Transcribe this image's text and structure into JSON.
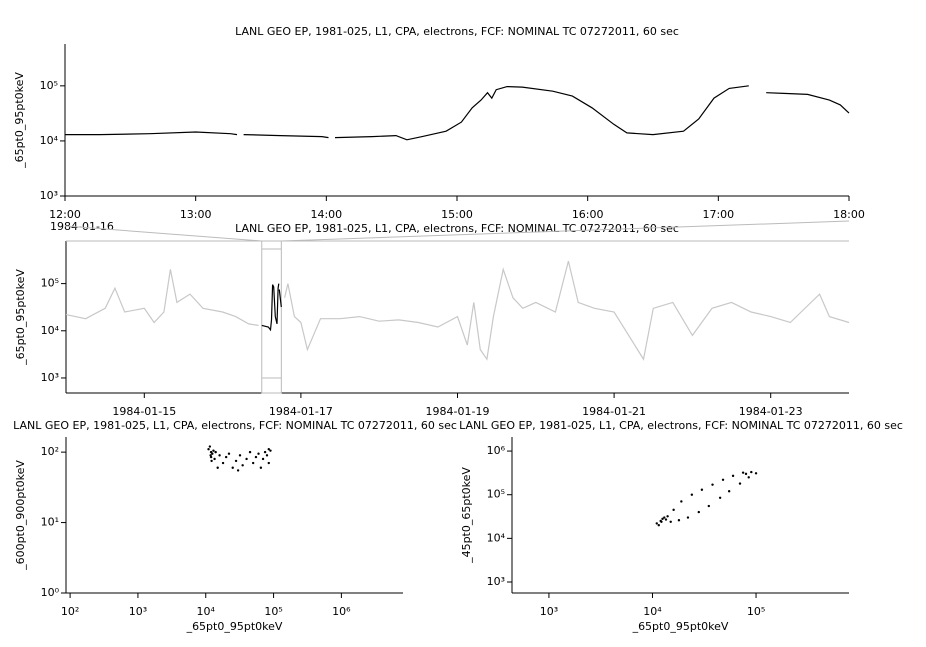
{
  "chart_data": [
    {
      "type": "line",
      "title": "LANL GEO EP, 1981-025, L1, CPA, electrons, FCF: NOMINAL TC 07272011, 60 sec",
      "ylabel": "_65pt0_95pt0keV",
      "yscale": "log",
      "x": [
        "12:00",
        "12:16",
        "12:39",
        "13:00",
        "13:16",
        "13:19",
        null,
        "13:22",
        "13:39",
        "13:58",
        "14:01",
        null,
        "14:04",
        "14:21",
        "14:32",
        "14:37",
        "14:44",
        "14:55",
        "15:02",
        "15:07",
        "15:11",
        "15:14",
        "15:16",
        "15:18",
        "15:23",
        "15:30",
        "15:44",
        "15:53",
        "16:02",
        "16:12",
        "16:18",
        "16:30",
        "16:44",
        "16:51",
        "16:58",
        "17:05",
        "17:14",
        null,
        "17:22",
        "17:30",
        "17:41",
        "17:51",
        "17:56",
        "18:00"
      ],
      "series": [
        {
          "color": "#000000",
          "values": [
            13000,
            13000,
            13500,
            14500,
            13500,
            13000,
            null,
            13000,
            12500,
            12000,
            11500,
            null,
            11500,
            12000,
            12500,
            10500,
            12000,
            15000,
            22000,
            40000,
            55000,
            75000,
            60000,
            85000,
            97000,
            95000,
            80000,
            65000,
            40000,
            20000,
            14000,
            13000,
            15000,
            25000,
            60000,
            90000,
            100000,
            null,
            75000,
            73000,
            70000,
            55000,
            45000,
            32000
          ]
        }
      ],
      "xlim": [
        "12:00",
        "18:00"
      ],
      "xticks": [
        "12:00",
        "13:00",
        "14:00",
        "15:00",
        "16:00",
        "17:00",
        "18:00"
      ],
      "ylim": [
        1000,
        575000
      ],
      "yticks": [
        {
          "value": 1000,
          "label": "10³"
        },
        {
          "value": 10000,
          "label": "10⁴"
        },
        {
          "value": 100000,
          "label": "10⁵"
        }
      ]
    },
    {
      "type": "line",
      "title": "LANL GEO EP, 1981-025, L1, CPA, electrons, FCF: NOMINAL TC 07272011, 60 sec",
      "annotation": "1984-01-16",
      "ylabel": "_65pt0_95pt0keV",
      "yscale": "log",
      "highlight": [
        "1984-01-16 12:00",
        "1984-01-16 18:00"
      ],
      "series": [
        {
          "color": "#c8c8c8",
          "x": [
            "1984-01-14 00:00",
            "1984-01-14 06:00",
            "1984-01-14 12:00",
            "1984-01-14 15:00",
            "1984-01-14 18:00",
            "1984-01-15 00:00",
            "1984-01-15 03:00",
            "1984-01-15 06:00",
            "1984-01-15 08:00",
            "1984-01-15 10:00",
            "1984-01-15 14:00",
            "1984-01-15 18:00",
            "1984-01-16 00:00",
            "1984-01-16 04:00",
            "1984-01-16 08:00",
            "1984-01-16 11:00",
            null,
            "1984-01-16 19:00",
            "1984-01-16 20:00",
            "1984-01-16 22:00",
            "1984-01-17 00:00",
            "1984-01-17 02:00",
            "1984-01-17 06:00",
            "1984-01-17 12:00",
            "1984-01-17 18:00",
            "1984-01-18 00:00",
            "1984-01-18 06:00",
            "1984-01-18 12:00",
            "1984-01-18 18:00",
            "1984-01-19 00:00",
            "1984-01-19 03:00",
            "1984-01-19 05:00",
            "1984-01-19 07:00",
            "1984-01-19 09:00",
            "1984-01-19 11:00",
            "1984-01-19 14:00",
            "1984-01-19 17:00",
            "1984-01-19 20:00",
            "1984-01-20 00:00",
            "1984-01-20 06:00",
            "1984-01-20 10:00",
            "1984-01-20 13:00",
            "1984-01-20 18:00",
            "1984-01-21 00:00",
            "1984-01-21 09:00",
            "1984-01-21 12:00",
            "1984-01-21 18:00",
            "1984-01-22 00:00",
            "1984-01-22 06:00",
            "1984-01-22 12:00",
            "1984-01-22 18:00",
            "1984-01-23 00:00",
            "1984-01-23 06:00",
            "1984-01-23 15:00",
            "1984-01-23 18:00",
            "1984-01-24 00:00"
          ],
          "values": [
            22000,
            18000,
            30000,
            80000,
            25000,
            30000,
            15000,
            25000,
            200000,
            40000,
            60000,
            30000,
            25000,
            20000,
            14000,
            13000,
            null,
            50000,
            100000,
            20000,
            15000,
            4000,
            18000,
            18000,
            20000,
            16000,
            17000,
            15000,
            12000,
            20000,
            5000,
            40000,
            4000,
            2500,
            20000,
            200000,
            50000,
            30000,
            40000,
            25000,
            300000,
            40000,
            30000,
            25000,
            2500,
            30000,
            40000,
            8000,
            30000,
            40000,
            25000,
            20000,
            15000,
            60000,
            20000,
            15000
          ]
        },
        {
          "color": "#000000",
          "x": [
            "1984-01-16 12:00",
            "1984-01-16 14:00",
            "1984-01-16 14:40",
            "1984-01-16 15:00",
            "1984-01-16 15:20",
            "1984-01-16 15:40",
            "1984-01-16 16:10",
            "1984-01-16 16:40",
            "1984-01-16 17:00",
            "1984-01-16 17:14",
            null,
            "1984-01-16 17:22",
            "1984-01-16 18:00"
          ],
          "values": [
            13000,
            12000,
            10500,
            17000,
            95000,
            85000,
            20000,
            14000,
            80000,
            100000,
            null,
            75000,
            32000
          ]
        }
      ],
      "xlim": [
        "1984-01-14",
        "1984-01-24"
      ],
      "xticks": [
        "1984-01-15",
        "1984-01-17",
        "1984-01-19",
        "1984-01-21",
        "1984-01-23"
      ],
      "ylim": [
        480,
        800000
      ],
      "yticks": [
        {
          "value": 1000,
          "label": "10³"
        },
        {
          "value": 10000,
          "label": "10⁴"
        },
        {
          "value": 100000,
          "label": "10⁵"
        }
      ]
    },
    {
      "type": "scatter",
      "title": "LANL GEO EP, 1981-025, L1, CPA, electrons, FCF: NOMINAL TC 07272011, 60 sec",
      "xlabel": "_65pt0_95pt0keV",
      "ylabel": "_600pt0_900pt0keV",
      "xscale": "log",
      "yscale": "log",
      "color": "#000000",
      "x": [
        11000,
        12000,
        12500,
        11500,
        13000,
        12000,
        11800,
        13500,
        12200,
        14000,
        16000,
        18000,
        20000,
        22000,
        25000,
        28000,
        32000,
        35000,
        40000,
        45000,
        50000,
        55000,
        60000,
        65000,
        70000,
        75000,
        80000,
        85000,
        90000,
        85000,
        15000,
        30000
      ],
      "values": [
        110,
        100,
        95,
        120,
        105,
        85,
        90,
        80,
        75,
        100,
        90,
        70,
        85,
        95,
        60,
        75,
        90,
        65,
        80,
        100,
        70,
        85,
        95,
        60,
        80,
        100,
        90,
        70,
        105,
        110,
        60,
        55
      ],
      "xlim": [
        87,
        8100000
      ],
      "xticks": [
        {
          "value": 100,
          "label": "10²"
        },
        {
          "value": 1000,
          "label": "10³"
        },
        {
          "value": 10000,
          "label": "10⁴"
        },
        {
          "value": 100000,
          "label": "10⁵"
        },
        {
          "value": 1000000,
          "label": "10⁶"
        }
      ],
      "ylim": [
        1,
        164
      ],
      "yticks": [
        {
          "value": 1,
          "label": "10⁰"
        },
        {
          "value": 10,
          "label": "10¹"
        },
        {
          "value": 100,
          "label": "10²"
        }
      ]
    },
    {
      "type": "scatter",
      "title": "LANL GEO EP, 1981-025, L1, CPA, electrons, FCF: NOMINAL TC 07272011, 60 sec",
      "xlabel": "_65pt0_95pt0keV",
      "ylabel": "_45pt0_65pt0keV",
      "xscale": "log",
      "yscale": "log",
      "color": "#000000",
      "x": [
        11000,
        12000,
        12500,
        11500,
        13000,
        12200,
        13500,
        14000,
        16000,
        19000,
        24000,
        30000,
        38000,
        48000,
        60000,
        75000,
        90000,
        100000,
        85000,
        70000,
        55000,
        45000,
        35000,
        28000,
        22000,
        18000,
        15000,
        80000
      ],
      "values": [
        22000,
        25000,
        28000,
        20000,
        30000,
        24000,
        27000,
        32000,
        45000,
        70000,
        100000,
        130000,
        170000,
        220000,
        270000,
        320000,
        330000,
        310000,
        250000,
        180000,
        120000,
        85000,
        55000,
        40000,
        30000,
        26000,
        24000,
        300000
      ],
      "xlim": [
        440,
        790000
      ],
      "xticks": [
        {
          "value": 1000,
          "label": "10³"
        },
        {
          "value": 10000,
          "label": "10⁴"
        },
        {
          "value": 100000,
          "label": "10⁵"
        }
      ],
      "ylim": [
        560,
        2100000
      ],
      "yticks": [
        {
          "value": 1000,
          "label": "10³"
        },
        {
          "value": 10000,
          "label": "10⁴"
        },
        {
          "value": 100000,
          "label": "10⁵"
        },
        {
          "value": 1000000,
          "label": "10⁶"
        }
      ]
    }
  ]
}
